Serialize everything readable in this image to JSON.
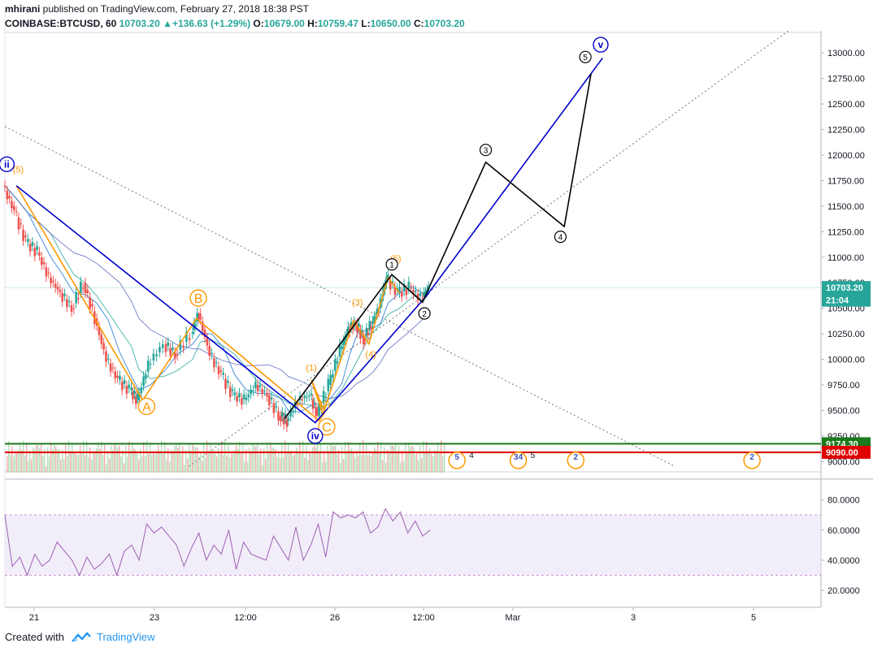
{
  "header": {
    "author": "mhirani",
    "published_text": " published on TradingView.com, February 27, 2018 18:38 PST",
    "symbol": "COINBASE:BTCUSD, 60",
    "last": "10703.20",
    "change": "+136.63 (+1.29%)",
    "open_label": "O:",
    "open": "10679.00",
    "high_label": "H:",
    "high": "10759.47",
    "low_label": "L:",
    "low": "10650.00",
    "close_label": "C:",
    "close": "10703.20"
  },
  "footer": {
    "created_with": "Created with",
    "brand": "TradingView"
  },
  "chart_data": {
    "type": "line",
    "x_ticks": [
      "21",
      "23",
      "12:00",
      "26",
      "12:00",
      "Mar",
      "3",
      "5"
    ],
    "y_ticks": [
      "13000.00",
      "12750.00",
      "12500.00",
      "12250.00",
      "12000.00",
      "11750.00",
      "11500.00",
      "11250.00",
      "11000.00",
      "10750.00",
      "10500.00",
      "10250.00",
      "10000.00",
      "9750.00",
      "9500.00",
      "9250.00",
      "9000.00"
    ],
    "ylim": [
      8900,
      13200
    ],
    "price_tags": [
      {
        "label": "10703.20",
        "value": 10703.2,
        "color": "#26a69a"
      },
      {
        "label": "21:04",
        "value": 10580,
        "color": "#26a69a"
      },
      {
        "label": "9174.30",
        "value": 9174.3,
        "color": "#1b7a1b"
      },
      {
        "label": "9090.00",
        "value": 9090,
        "color": "#e00000"
      }
    ],
    "price_series": [
      {
        "t": 0,
        "v": 11700
      },
      {
        "t": 0.3,
        "v": 11450
      },
      {
        "t": 0.6,
        "v": 11150
      },
      {
        "t": 0.9,
        "v": 11050
      },
      {
        "t": 1.2,
        "v": 10800
      },
      {
        "t": 1.5,
        "v": 10650
      },
      {
        "t": 1.8,
        "v": 10500
      },
      {
        "t": 2.1,
        "v": 10750
      },
      {
        "t": 2.4,
        "v": 10400
      },
      {
        "t": 2.7,
        "v": 10000
      },
      {
        "t": 3.0,
        "v": 9800
      },
      {
        "t": 3.3,
        "v": 9700
      },
      {
        "t": 3.5,
        "v": 9600
      },
      {
        "t": 3.8,
        "v": 9950
      },
      {
        "t": 4.2,
        "v": 10150
      },
      {
        "t": 4.5,
        "v": 10050
      },
      {
        "t": 4.9,
        "v": 10250
      },
      {
        "t": 5.1,
        "v": 10450
      },
      {
        "t": 5.4,
        "v": 10050
      },
      {
        "t": 5.7,
        "v": 9850
      },
      {
        "t": 6.0,
        "v": 9650
      },
      {
        "t": 6.3,
        "v": 9600
      },
      {
        "t": 6.6,
        "v": 9750
      },
      {
        "t": 6.9,
        "v": 9650
      },
      {
        "t": 7.2,
        "v": 9450
      },
      {
        "t": 7.4,
        "v": 9400
      },
      {
        "t": 7.7,
        "v": 9600
      },
      {
        "t": 8.0,
        "v": 9650
      },
      {
        "t": 8.2,
        "v": 9450
      },
      {
        "t": 8.5,
        "v": 9750
      },
      {
        "t": 8.8,
        "v": 10100
      },
      {
        "t": 9.0,
        "v": 10300
      },
      {
        "t": 9.2,
        "v": 10350
      },
      {
        "t": 9.4,
        "v": 10200
      },
      {
        "t": 9.6,
        "v": 10350
      },
      {
        "t": 9.8,
        "v": 10500
      },
      {
        "t": 10.0,
        "v": 10800
      },
      {
        "t": 10.3,
        "v": 10650
      },
      {
        "t": 10.6,
        "v": 10700
      },
      {
        "t": 10.9,
        "v": 10600
      },
      {
        "t": 11.1,
        "v": 10703.2
      }
    ],
    "waves": [
      {
        "color": "#ff9800",
        "points": [
          [
            0.3,
            11700
          ],
          [
            3.6,
            9600
          ],
          [
            5.0,
            10400
          ],
          [
            8.2,
            9400
          ],
          [
            8.35,
            9480
          ],
          [
            8.0,
            9800
          ],
          [
            8.3,
            9460
          ],
          [
            9.1,
            10380
          ],
          [
            9.5,
            10150
          ],
          [
            10.0,
            10800
          ],
          [
            10.3,
            10650
          ]
        ]
      },
      {
        "color": "#0000cc",
        "points": [
          [
            0.3,
            11700
          ],
          [
            8.1,
            9380
          ],
          [
            11.0,
            10620
          ],
          [
            15.6,
            12950
          ]
        ]
      },
      {
        "color": "#000000",
        "points": [
          [
            7.3,
            9420
          ],
          [
            10.1,
            10830
          ],
          [
            10.9,
            10560
          ],
          [
            12.55,
            11930
          ],
          [
            14.6,
            11300
          ],
          [
            15.3,
            12800
          ]
        ]
      }
    ],
    "trendlines": [
      {
        "from": [
          0,
          12280
        ],
        "to": [
          17.5,
          8950
        ]
      },
      {
        "from": [
          4.8,
          8950
        ],
        "to": [
          20.5,
          13230
        ]
      }
    ],
    "wave_labels": [
      {
        "text": "A",
        "t": 3.7,
        "v": 9540,
        "color": "#ff9800",
        "style": "big"
      },
      {
        "text": "B",
        "t": 5.05,
        "v": 10600,
        "color": "#ff9800",
        "style": "big"
      },
      {
        "text": "C",
        "t": 8.4,
        "v": 9340,
        "color": "#ff9800",
        "style": "big"
      },
      {
        "text": "(5)",
        "t": 0.35,
        "v": 11830,
        "color": "#ff9800",
        "style": "plain"
      },
      {
        "text": "(1)",
        "t": 8.0,
        "v": 9890,
        "color": "#ff9800",
        "style": "plain"
      },
      {
        "text": "(2)",
        "t": 8.35,
        "v": 9530,
        "color": "#ff9800",
        "style": "plain"
      },
      {
        "text": "(3)",
        "t": 9.2,
        "v": 10530,
        "color": "#ff9800",
        "style": "plain"
      },
      {
        "text": "(4)",
        "t": 9.55,
        "v": 10020,
        "color": "#ff9800",
        "style": "plain"
      },
      {
        "text": "(5)",
        "t": 10.2,
        "v": 10960,
        "color": "#ff9800",
        "style": "plain"
      },
      {
        "text": "ii",
        "t": 0.05,
        "v": 11910,
        "color": "#0000cc",
        "style": "ring"
      },
      {
        "text": "iv",
        "t": 8.1,
        "v": 9250,
        "color": "#0000cc",
        "style": "ring"
      },
      {
        "text": "v",
        "t": 15.55,
        "v": 13080,
        "color": "#0000cc",
        "style": "ring"
      },
      {
        "text": "1",
        "t": 10.1,
        "v": 10930,
        "color": "#000000",
        "style": "circle"
      },
      {
        "text": "2",
        "t": 10.95,
        "v": 10450,
        "color": "#000000",
        "style": "circle"
      },
      {
        "text": "3",
        "t": 12.55,
        "v": 12050,
        "color": "#000000",
        "style": "circle"
      },
      {
        "text": "4",
        "t": 14.5,
        "v": 11200,
        "color": "#000000",
        "style": "circle"
      },
      {
        "text": "5",
        "t": 15.15,
        "v": 12960,
        "color": "#000000",
        "style": "circle"
      }
    ],
    "event_flags": [
      {
        "label": "5",
        "count": "4",
        "t": 11.8
      },
      {
        "label": "34",
        "count": "5",
        "t": 13.4
      },
      {
        "label": "2",
        "count": "",
        "t": 14.9
      },
      {
        "label": "2",
        "count": "",
        "t": 19.5
      }
    ],
    "rsi": {
      "y_ticks": [
        "80.0000",
        "60.0000",
        "40.0000",
        "20.0000"
      ],
      "ylim": [
        12,
        90
      ],
      "band": [
        30,
        70
      ],
      "values": [
        70,
        36,
        42,
        30,
        44,
        36,
        40,
        52,
        46,
        40,
        30,
        42,
        34,
        38,
        44,
        30,
        46,
        50,
        40,
        64,
        58,
        62,
        56,
        50,
        36,
        48,
        58,
        40,
        50,
        44,
        60,
        34,
        52,
        44,
        42,
        40,
        56,
        48,
        40,
        62,
        40,
        50,
        64,
        42,
        72,
        68,
        70,
        68,
        72,
        58,
        62,
        74,
        66,
        72,
        58,
        66,
        56,
        60
      ]
    }
  }
}
